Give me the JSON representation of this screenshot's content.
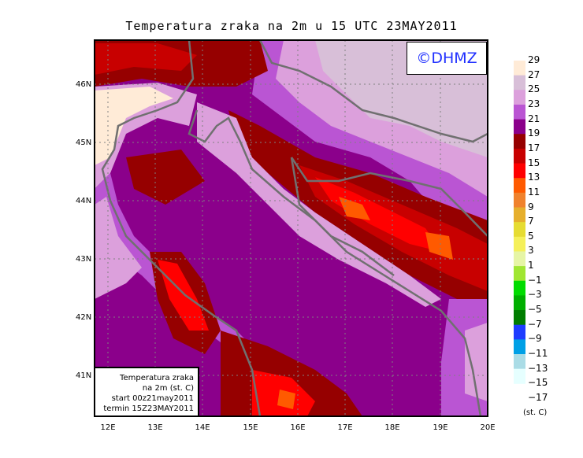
{
  "title": "Temperatura zraka na 2m u 15 UTC 23MAY2011",
  "logo": "©DHMZ",
  "lat_labels": [
    "46N",
    "45N",
    "44N",
    "43N",
    "42N",
    "41N"
  ],
  "lon_labels": [
    "12E",
    "13E",
    "14E",
    "15E",
    "16E",
    "17E",
    "18E",
    "19E",
    "20E"
  ],
  "legend_box": [
    "Temperatura zraka",
    "na 2m (st. C)",
    "start 00z21may2011",
    "termin 15Z23MAY2011"
  ],
  "colorbar": {
    "labels": [
      "29",
      "27",
      "25",
      "23",
      "21",
      "19",
      "17",
      "15",
      "13",
      "11",
      "9",
      "7",
      "5",
      "3",
      "1",
      "−1",
      "−3",
      "−5",
      "−7",
      "−9",
      "−11",
      "−13",
      "−15",
      "−17"
    ],
    "colors": [
      "#ffebd7",
      "#d8bfd8",
      "#dca0dc",
      "#ba55d3",
      "#8b008b",
      "#960000",
      "#c80000",
      "#ff0000",
      "#ff5a00",
      "#f0822d",
      "#e6af2d",
      "#e6dc32",
      "#f5f05a",
      "#e6f5a5",
      "#a0e632",
      "#00dc00",
      "#00af00",
      "#007d00",
      "#1e3cff",
      "#00a0e6",
      "#aadce6",
      "#e6ffff"
    ],
    "units": "(st. C)"
  }
}
